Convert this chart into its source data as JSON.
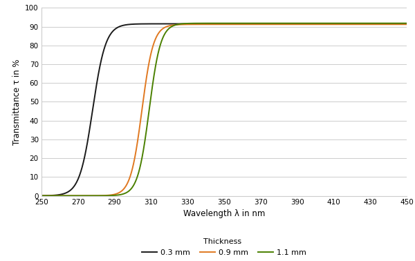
{
  "xlabel": "Wavelength λ in nm",
  "ylabel": "Transmittance τ in %",
  "xmin": 250,
  "xmax": 450,
  "ymin": 0,
  "ymax": 100,
  "xticks": [
    250,
    270,
    290,
    310,
    330,
    350,
    370,
    390,
    410,
    430,
    450
  ],
  "yticks": [
    0,
    10,
    20,
    30,
    40,
    50,
    60,
    70,
    80,
    90,
    100
  ],
  "legend_title": "Thickness",
  "series": [
    {
      "label": "0.3 mm",
      "color": "#1a1a1a",
      "midpoint": 278,
      "steepness": 0.28,
      "max_val": 91.5
    },
    {
      "label": "0.9 mm",
      "color": "#e07820",
      "midpoint": 305,
      "steepness": 0.32,
      "max_val": 91.2
    },
    {
      "label": "1.1 mm",
      "color": "#4a8000",
      "midpoint": 309,
      "steepness": 0.32,
      "max_val": 91.8
    }
  ],
  "background_color": "#ffffff",
  "grid_color": "#cccccc",
  "line_width": 1.4
}
